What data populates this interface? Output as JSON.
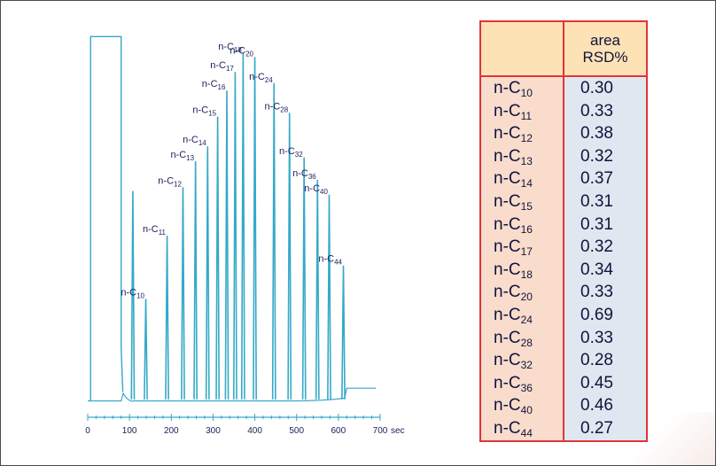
{
  "chart_data": {
    "type": "line",
    "xlabel": "",
    "ylabel": "",
    "xlim": [
      0,
      700
    ],
    "x_ticks": [
      0,
      100,
      200,
      300,
      400,
      500,
      600,
      700
    ],
    "x_unit": "sec",
    "grid": false,
    "line_color": "#35a9c8",
    "solvent_peak": {
      "start": 7,
      "end": 80
    },
    "peaks": [
      {
        "x": 108,
        "height": 0.57
      },
      {
        "x": 139,
        "height": 0.28,
        "label": "n-C",
        "sub": "10"
      },
      {
        "x": 190,
        "height": 0.45,
        "label": "n-C",
        "sub": "11"
      },
      {
        "x": 228,
        "height": 0.58,
        "label": "n-C",
        "sub": "12"
      },
      {
        "x": 258,
        "height": 0.65,
        "label": "n-C",
        "sub": "13"
      },
      {
        "x": 287,
        "height": 0.69,
        "label": "n-C",
        "sub": "14"
      },
      {
        "x": 311,
        "height": 0.77,
        "label": "n-C",
        "sub": "15"
      },
      {
        "x": 333,
        "height": 0.84,
        "label": "n-C",
        "sub": "16"
      },
      {
        "x": 353,
        "height": 0.89,
        "label": "n-C",
        "sub": "17"
      },
      {
        "x": 372,
        "height": 0.94,
        "label": "n-C",
        "sub": "18"
      },
      {
        "x": 400,
        "height": 0.93,
        "label": "n-C",
        "sub": "20"
      },
      {
        "x": 446,
        "height": 0.86,
        "label": "n-C",
        "sub": "24"
      },
      {
        "x": 483,
        "height": 0.78,
        "label": "n-C",
        "sub": "28"
      },
      {
        "x": 518,
        "height": 0.66,
        "label": "n-C",
        "sub": "32"
      },
      {
        "x": 550,
        "height": 0.6,
        "label": "n-C",
        "sub": "36"
      },
      {
        "x": 578,
        "height": 0.56,
        "label": "n-C",
        "sub": "40"
      },
      {
        "x": 612,
        "height": 0.37,
        "label": "n-C",
        "sub": "44"
      }
    ]
  },
  "table": {
    "header": "area RSD%",
    "rows": [
      {
        "name": "n-C",
        "sub": "10",
        "value": "0.30"
      },
      {
        "name": "n-C",
        "sub": "11",
        "value": "0.33"
      },
      {
        "name": "n-C",
        "sub": "12",
        "value": "0.38"
      },
      {
        "name": "n-C",
        "sub": "13",
        "value": "0.32"
      },
      {
        "name": "n-C",
        "sub": "14",
        "value": "0.37"
      },
      {
        "name": "n-C",
        "sub": "15",
        "value": "0.31"
      },
      {
        "name": "n-C",
        "sub": "16",
        "value": "0.31"
      },
      {
        "name": "n-C",
        "sub": "17",
        "value": "0.32"
      },
      {
        "name": "n-C",
        "sub": "18",
        "value": "0.34"
      },
      {
        "name": "n-C",
        "sub": "20",
        "value": "0.33"
      },
      {
        "name": "n-C",
        "sub": "24",
        "value": "0.69"
      },
      {
        "name": "n-C",
        "sub": "28",
        "value": "0.33"
      },
      {
        "name": "n-C",
        "sub": "32",
        "value": "0.28"
      },
      {
        "name": "n-C",
        "sub": "36",
        "value": "0.45"
      },
      {
        "name": "n-C",
        "sub": "40",
        "value": "0.46"
      },
      {
        "name": "n-C",
        "sub": "44",
        "value": "0.27"
      }
    ]
  },
  "colors": {
    "trace": "#35a9c8",
    "table_border": "#e0343a",
    "header_fill": "#fde2b6",
    "names_fill": "#f9dccc",
    "values_fill": "#dfe8f0"
  }
}
